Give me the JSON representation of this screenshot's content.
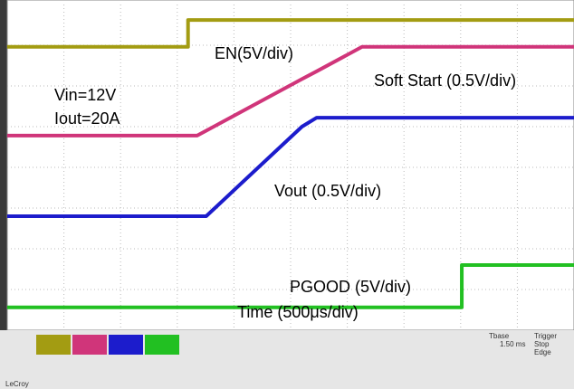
{
  "chart_data": {
    "type": "line",
    "x": [
      0,
      3.19,
      3.19,
      3.35,
      3.51,
      5.2,
      5.46,
      6.26,
      8.02,
      8.02,
      10
    ],
    "xlim": [
      0,
      10
    ],
    "ylim": [
      0,
      8
    ],
    "xlabel": "Time (500μs/div)",
    "annotations": [
      "Vin=12V",
      "Iout=20A"
    ],
    "series": [
      {
        "name": "EN(5V/div)",
        "color": "#a39c12",
        "values": [
          6.96,
          6.96,
          7.62,
          7.62,
          7.62,
          7.62,
          7.62,
          7.62,
          7.62,
          7.62,
          7.62
        ]
      },
      {
        "name": "Soft Start (0.5V/div)",
        "color": "#d0357a",
        "values": [
          4.78,
          4.78,
          4.78,
          4.78,
          4.9,
          6.17,
          6.36,
          6.96,
          6.96,
          6.96,
          6.96
        ]
      },
      {
        "name": "Vout (0.5V/div)",
        "color": "#1c1ccc",
        "values": [
          2.8,
          2.8,
          2.8,
          2.8,
          2.8,
          5.0,
          5.22,
          5.22,
          5.22,
          5.22,
          5.22
        ]
      },
      {
        "name": "PGOOD (5V/div)",
        "color": "#22c022",
        "values": [
          0.56,
          0.56,
          0.56,
          0.56,
          0.56,
          0.56,
          0.56,
          0.56,
          0.56,
          1.6,
          1.6
        ]
      }
    ]
  },
  "status_bar": [
    "Tbase",
    "1.50 ms",
    "Trigger",
    "Stop",
    "Edge",
    "LeCroy"
  ]
}
